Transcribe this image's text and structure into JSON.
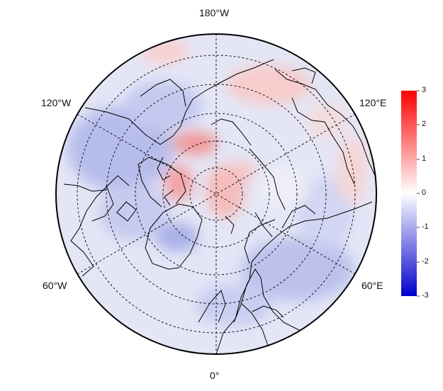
{
  "map": {
    "projection": "north polar stereographic",
    "longitude_labels": {
      "top": "180°W",
      "upper_left": "120°W",
      "upper_right": "120°E",
      "lower_left": "60°W",
      "lower_right": "60°E",
      "bottom": "0°"
    },
    "field_colors": {
      "positive": "#ff0000",
      "zero": "#ffffff",
      "negative": "#0000cc"
    }
  },
  "colorbar": {
    "ticks": [
      "3",
      "2",
      "1",
      "0",
      "-1",
      "-2",
      "-3"
    ],
    "range": [
      -3,
      3
    ],
    "colors": {
      "top": "#ff0000",
      "middle": "#ffffff",
      "bottom": "#0000cc"
    }
  }
}
